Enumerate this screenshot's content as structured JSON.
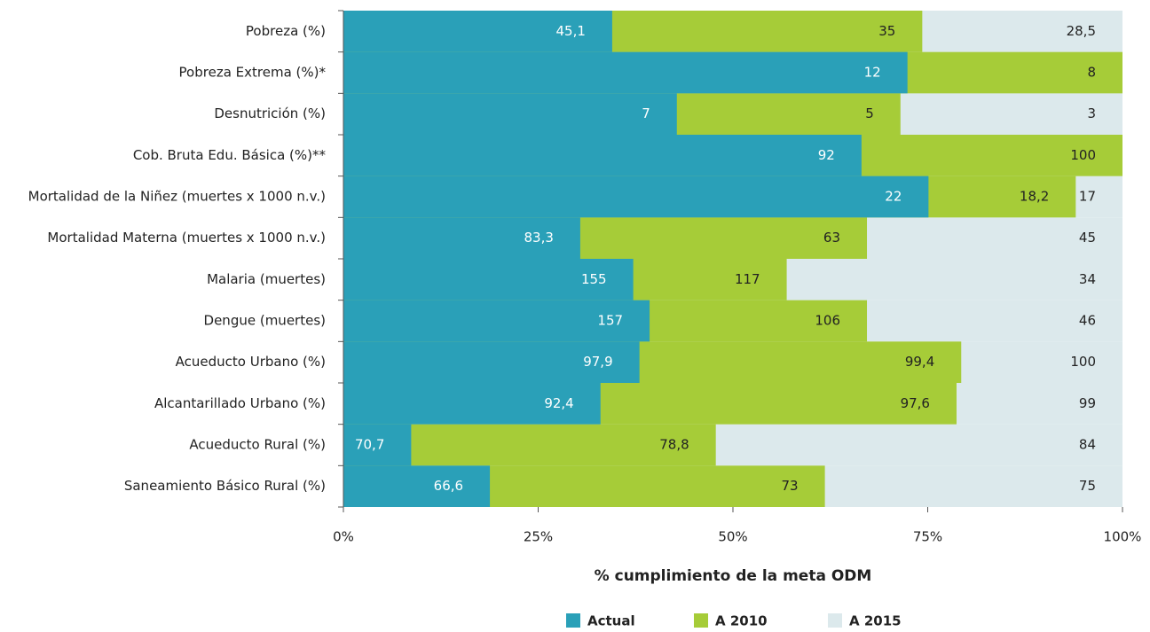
{
  "chart_data": {
    "type": "bar",
    "orientation": "horizontal",
    "overlap": true,
    "categories": [
      "Pobreza (%)",
      "Pobreza Extrema (%)*",
      "Desnutrición (%)",
      "Cob. Bruta Edu. Básica (%)**",
      "Mortalidad de la Niñez (muertes x 1000 n.v.)",
      "Mortalidad Materna (muertes x 1000 n.v.)",
      "Malaria (muertes)",
      "Dengue (muertes)",
      "Acueducto Urbano (%)",
      "Alcantarillado Urbano (%)",
      "Acueducto Rural (%)",
      "Saneamiento Básico Rural (%)"
    ],
    "series": [
      {
        "name": "A 2015",
        "color": "#dce9ec",
        "label_color": "#222",
        "values": [
          100,
          100,
          100,
          100,
          100,
          100,
          100,
          100,
          100,
          100,
          100,
          100
        ],
        "data_labels": [
          "28,5",
          null,
          "3",
          null,
          "17",
          "45",
          "34",
          "46",
          "100",
          "99",
          "84",
          "75"
        ]
      },
      {
        "name": "A 2010",
        "color": "#a6cc38",
        "label_color": "#222",
        "values": [
          74.3,
          100,
          71.5,
          100,
          94.0,
          67.2,
          56.9,
          67.2,
          79.3,
          78.7,
          47.8,
          61.8
        ],
        "data_labels": [
          "35",
          "8",
          "5",
          "100",
          "18,2",
          "63",
          "117",
          "106",
          "99,4",
          "97,6",
          "78,8",
          "73"
        ]
      },
      {
        "name": "Actual",
        "color": "#2aa0b8",
        "label_color": "#fff",
        "values": [
          34.5,
          72.4,
          42.8,
          66.5,
          75.1,
          30.4,
          37.2,
          39.3,
          38.0,
          33.0,
          8.7,
          18.8
        ],
        "data_labels": [
          "45,1",
          "12",
          "7",
          "92",
          "22",
          "83,3",
          "155",
          "157",
          "97,9",
          "92,4",
          "70,7",
          "66,6"
        ]
      }
    ],
    "legend_order": [
      2,
      1,
      0
    ],
    "xlabel": "% cumplimiento de la meta ODM",
    "xlim": [
      0,
      100
    ],
    "xticks": [
      {
        "value": 0,
        "label": "0%"
      },
      {
        "value": 25,
        "label": "25%"
      },
      {
        "value": 50,
        "label": "50%"
      },
      {
        "value": 75,
        "label": "75%"
      },
      {
        "value": 100,
        "label": "100%"
      }
    ],
    "legend": "bottom"
  }
}
